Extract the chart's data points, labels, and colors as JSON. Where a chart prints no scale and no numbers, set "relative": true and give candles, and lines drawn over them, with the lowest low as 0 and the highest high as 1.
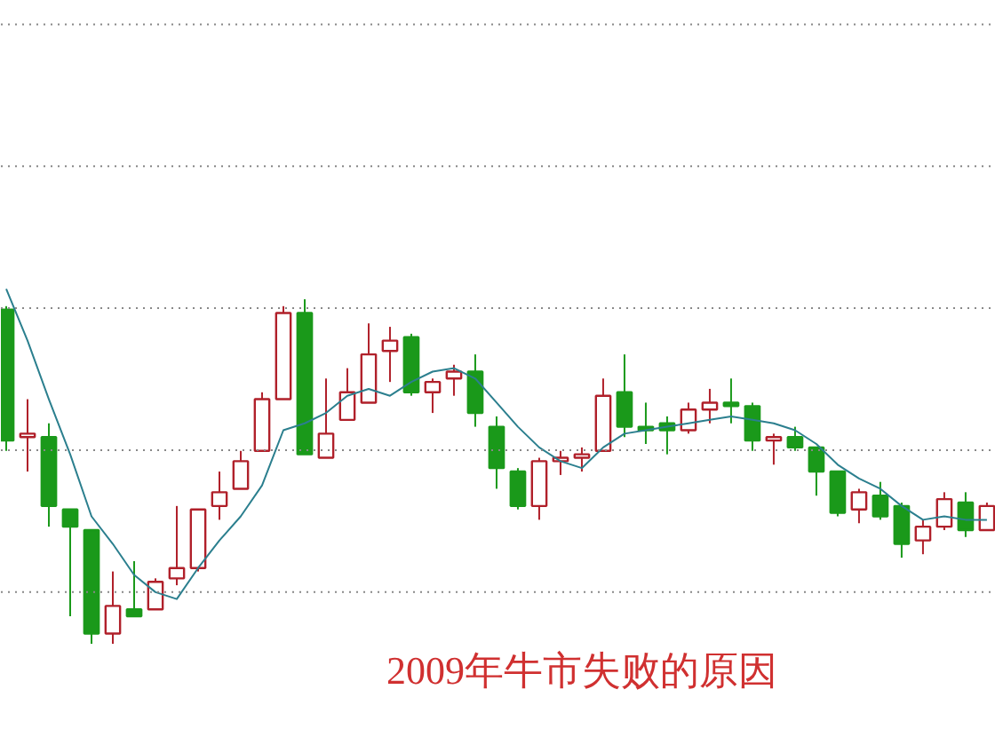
{
  "chart_data": {
    "type": "candlestick",
    "title": "2009年牛市失败的原因",
    "relative": true,
    "grid": "y",
    "categories": [
      null,
      null,
      null,
      null,
      null,
      null,
      null,
      null,
      null,
      null,
      null,
      null,
      null,
      null,
      null,
      null,
      null,
      null,
      null,
      null,
      null,
      null,
      null,
      null,
      null,
      null,
      null,
      null,
      null,
      null,
      null,
      null,
      null,
      null,
      null,
      null,
      null,
      null,
      null,
      null,
      null,
      null,
      null,
      null,
      null,
      null,
      null
    ],
    "ohlc": [
      [
        0.97,
        0.98,
        0.56,
        0.59
      ],
      [
        0.6,
        0.71,
        0.5,
        0.61
      ],
      [
        0.6,
        0.64,
        0.34,
        0.4
      ],
      [
        0.39,
        0.39,
        0.08,
        0.34
      ],
      [
        0.33,
        0.33,
        0.0,
        0.03
      ],
      [
        0.03,
        0.21,
        0.0,
        0.11
      ],
      [
        0.1,
        0.24,
        0.08,
        0.08
      ],
      [
        0.1,
        0.19,
        0.1,
        0.18
      ],
      [
        0.19,
        0.4,
        0.17,
        0.22
      ],
      [
        0.22,
        0.39,
        0.21,
        0.39
      ],
      [
        0.4,
        0.5,
        0.36,
        0.44
      ],
      [
        0.45,
        0.56,
        0.45,
        0.53
      ],
      [
        0.56,
        0.73,
        0.56,
        0.71
      ],
      [
        0.71,
        0.98,
        0.71,
        0.96
      ],
      [
        0.96,
        1.0,
        0.55,
        0.55
      ],
      [
        0.54,
        0.77,
        0.54,
        0.61
      ],
      [
        0.65,
        0.8,
        0.65,
        0.73
      ],
      [
        0.7,
        0.93,
        0.7,
        0.84
      ],
      [
        0.85,
        0.92,
        0.76,
        0.88
      ],
      [
        0.89,
        0.9,
        0.72,
        0.73
      ],
      [
        0.73,
        0.77,
        0.67,
        0.76
      ],
      [
        0.77,
        0.81,
        0.72,
        0.79
      ],
      [
        0.79,
        0.84,
        0.63,
        0.67
      ],
      [
        0.63,
        0.66,
        0.45,
        0.51
      ],
      [
        0.5,
        0.51,
        0.39,
        0.4
      ],
      [
        0.4,
        0.54,
        0.36,
        0.53
      ],
      [
        0.53,
        0.56,
        0.49,
        0.54
      ],
      [
        0.54,
        0.57,
        0.5,
        0.55
      ],
      [
        0.56,
        0.77,
        0.56,
        0.72
      ],
      [
        0.73,
        0.84,
        0.6,
        0.63
      ],
      [
        0.63,
        0.7,
        0.58,
        0.62
      ],
      [
        0.64,
        0.66,
        0.55,
        0.62
      ],
      [
        0.62,
        0.7,
        0.61,
        0.68
      ],
      [
        0.68,
        0.74,
        0.64,
        0.7
      ],
      [
        0.7,
        0.77,
        0.64,
        0.69
      ],
      [
        0.69,
        0.7,
        0.56,
        0.59
      ],
      [
        0.59,
        0.61,
        0.52,
        0.6
      ],
      [
        0.6,
        0.63,
        0.56,
        0.57
      ],
      [
        0.57,
        0.57,
        0.43,
        0.5
      ],
      [
        0.5,
        0.5,
        0.37,
        0.38
      ],
      [
        0.39,
        0.45,
        0.35,
        0.44
      ],
      [
        0.43,
        0.47,
        0.36,
        0.37
      ],
      [
        0.4,
        0.41,
        0.25,
        0.29
      ],
      [
        0.3,
        0.36,
        0.26,
        0.34
      ],
      [
        0.34,
        0.44,
        0.33,
        0.42
      ],
      [
        0.41,
        0.44,
        0.31,
        0.33
      ],
      [
        0.33,
        0.41,
        0.33,
        0.4
      ]
    ],
    "colors": [
      "#1a991a",
      "#b0202a",
      "#1a991a",
      "#1a991a",
      "#1a991a",
      "#b0202a",
      "#1a991a",
      "#b0202a",
      "#b0202a",
      "#b0202a",
      "#b0202a",
      "#b0202a",
      "#b0202a",
      "#b0202a",
      "#1a991a",
      "#b0202a",
      "#b0202a",
      "#b0202a",
      "#b0202a",
      "#1a991a",
      "#b0202a",
      "#b0202a",
      "#1a991a",
      "#1a991a",
      "#1a991a",
      "#b0202a",
      "#b0202a",
      "#b0202a",
      "#b0202a",
      "#1a991a",
      "#1a991a",
      "#1a991a",
      "#b0202a",
      "#b0202a",
      "#1a991a",
      "#1a991a",
      "#b0202a",
      "#1a991a",
      "#1a991a",
      "#1a991a",
      "#b0202a",
      "#1a991a",
      "#1a991a",
      "#b0202a",
      "#b0202a",
      "#1a991a",
      "#b0202a"
    ],
    "series": [
      {
        "type": "line",
        "color": "#2b7f8e",
        "values": [
          1.03,
          0.88,
          0.71,
          0.55,
          0.37,
          0.29,
          0.2,
          0.15,
          0.13,
          0.22,
          0.3,
          0.37,
          0.46,
          0.62,
          0.64,
          0.67,
          0.72,
          0.74,
          0.72,
          0.76,
          0.79,
          0.8,
          0.77,
          0.7,
          0.63,
          0.57,
          0.53,
          0.51,
          0.57,
          0.61,
          0.62,
          0.63,
          0.64,
          0.65,
          0.66,
          0.65,
          0.64,
          0.62,
          0.58,
          0.52,
          0.48,
          0.45,
          0.4,
          0.36,
          0.37,
          0.36,
          0.36
        ]
      }
    ]
  }
}
